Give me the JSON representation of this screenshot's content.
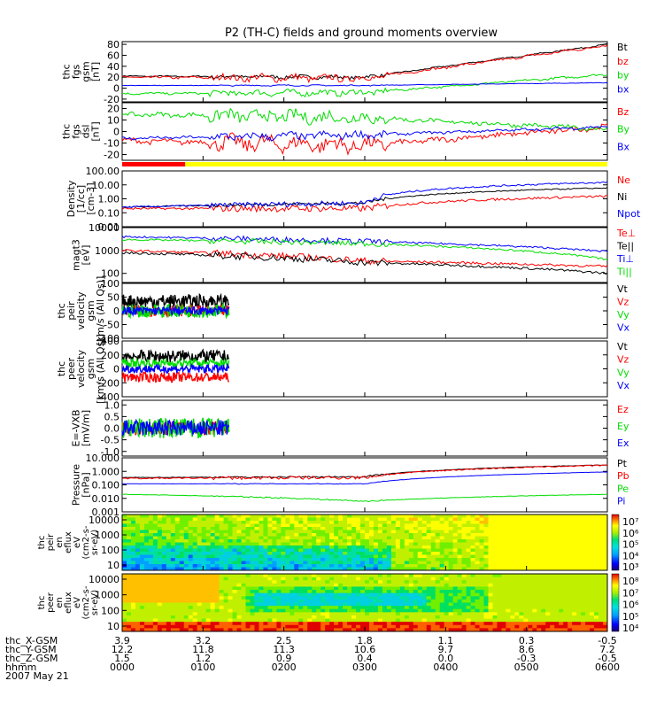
{
  "title": "P2 (TH-C) fields and ground moments overview",
  "chart_data": {
    "type": "line",
    "title": "P2 (TH-C) fields and ground moments overview",
    "time_axis": {
      "label": "hhmm",
      "ticks": [
        "0000",
        "0100",
        "0200",
        "0300",
        "0400",
        "0500",
        "0600"
      ]
    },
    "footer": {
      "rows": [
        {
          "label": "thc_X-GSM",
          "values": [
            "3.9",
            "3.2",
            "2.5",
            "1.8",
            "1.1",
            "0.3",
            "-0.5"
          ]
        },
        {
          "label": "thc_Y-GSM",
          "values": [
            "12.2",
            "11.8",
            "11.3",
            "10.6",
            "9.7",
            "8.6",
            "7.2"
          ]
        },
        {
          "label": "thc_Z-GSM",
          "values": [
            "1.5",
            "1.2",
            "0.9",
            "0.4",
            "0.0",
            "-0.3",
            "-0.5"
          ]
        }
      ],
      "date": "2007 May 21"
    },
    "panels": [
      {
        "id": "fgs_gsm",
        "ylabel": [
          "thc",
          "fgs",
          "gsm",
          "[nT]"
        ],
        "ticks": [
          "80",
          "60",
          "40",
          "20",
          "0",
          "-20"
        ],
        "ylim": [
          -25,
          85
        ],
        "series": [
          {
            "name": "Bt",
            "color": "#000000",
            "start": 22,
            "end": 80,
            "mid": 20,
            "ripple": 3
          },
          {
            "name": "bz",
            "color": "#ff0000",
            "start": 20,
            "end": 78,
            "mid": 18,
            "ripple": 6
          },
          {
            "name": "by",
            "color": "#00dd00",
            "start": -10,
            "end": 25,
            "mid": -8,
            "ripple": 5
          },
          {
            "name": "bx",
            "color": "#0000ff",
            "start": 5,
            "end": 10,
            "mid": 5,
            "ripple": 1
          }
        ]
      },
      {
        "id": "fgs_dsl",
        "ylabel": [
          "thc",
          "fgs",
          "dsl",
          "[nT]"
        ],
        "ticks": [
          "20",
          "10",
          "0",
          "-10",
          "-20"
        ],
        "ylim": [
          -25,
          25
        ],
        "series": [
          {
            "name": "Bz",
            "color": "#ff0000",
            "start": -8,
            "end": 4,
            "mid": -12,
            "ripple": 6
          },
          {
            "name": "By",
            "color": "#00dd00",
            "start": 15,
            "end": 2,
            "mid": 12,
            "ripple": 5
          },
          {
            "name": "Bx",
            "color": "#0000ff",
            "start": -6,
            "end": 4,
            "mid": -3,
            "ripple": 3
          }
        ]
      },
      {
        "id": "density",
        "ylabel": [
          "Density",
          "[1/cc]",
          "[cm-3]"
        ],
        "ticks": [
          "100.00",
          "10.00",
          "1.00",
          "0.10",
          "0.01"
        ],
        "log": true,
        "ylim": [
          0.01,
          100
        ],
        "series": [
          {
            "name": "Ne",
            "color": "#ff0000",
            "start": 0.2,
            "end": 1.5,
            "mid": 0.2,
            "ripple": 0.4
          },
          {
            "name": "Ni",
            "color": "#000000",
            "start": 0.25,
            "end": 6,
            "mid": 0.5,
            "ripple": 0.2
          },
          {
            "name": "Npot",
            "color": "#0000ff",
            "start": 0.25,
            "end": 15,
            "mid": 0.5,
            "ripple": 0.3
          }
        ]
      },
      {
        "id": "temp",
        "ylabel": [
          "magt3",
          "[eV]"
        ],
        "ticks": [
          "10000",
          "1000",
          "100"
        ],
        "log": true,
        "ylim": [
          40,
          10000
        ],
        "series": [
          {
            "name": "Te⊥",
            "color": "#ff0000",
            "start": 1000,
            "end": 200,
            "mid": 350,
            "ripple": 0.25
          },
          {
            "name": "Te||",
            "color": "#000000",
            "start": 800,
            "end": 100,
            "mid": 300,
            "ripple": 0.25
          },
          {
            "name": "Ti⊥",
            "color": "#0000ff",
            "start": 4000,
            "end": 900,
            "mid": 2500,
            "ripple": 0.2
          },
          {
            "name": "Ti||",
            "color": "#00dd00",
            "start": 3000,
            "end": 400,
            "mid": 2000,
            "ripple": 0.2
          }
        ]
      },
      {
        "id": "peir_vel",
        "ylabel": [
          "thc",
          "peir",
          "velocity",
          "gsm",
          "[km/s (All Qs)]"
        ],
        "ticks": [
          "100",
          "50",
          "0",
          "-50",
          "-100"
        ],
        "ylim": [
          -100,
          100
        ],
        "partial": 0.22,
        "series": [
          {
            "name": "Vt",
            "color": "#000000",
            "start": 35,
            "end": 35,
            "mid": 35,
            "ripple": 25
          },
          {
            "name": "Vz",
            "color": "#ff0000",
            "start": 0,
            "end": 0,
            "mid": 0,
            "ripple": 20
          },
          {
            "name": "Vy",
            "color": "#00dd00",
            "start": 0,
            "end": 0,
            "mid": 0,
            "ripple": 25
          },
          {
            "name": "Vx",
            "color": "#0000ff",
            "start": 0,
            "end": 0,
            "mid": 0,
            "ripple": 15
          }
        ]
      },
      {
        "id": "peer_vel",
        "ylabel": [
          "thc",
          "peer",
          "velocity",
          "gsm",
          "[km/s (All Qs)]"
        ],
        "ticks": [
          "400",
          "200",
          "0",
          "-200",
          "-400"
        ],
        "ylim": [
          -400,
          400
        ],
        "partial": 0.22,
        "series": [
          {
            "name": "Vt",
            "color": "#000000",
            "start": 180,
            "end": 180,
            "mid": 180,
            "ripple": 90
          },
          {
            "name": "Vz",
            "color": "#ff0000",
            "start": -120,
            "end": -120,
            "mid": -120,
            "ripple": 70
          },
          {
            "name": "Vy",
            "color": "#00dd00",
            "start": 80,
            "end": 80,
            "mid": 80,
            "ripple": 60
          },
          {
            "name": "Vx",
            "color": "#0000ff",
            "start": 0,
            "end": 0,
            "mid": 0,
            "ripple": 60
          }
        ]
      },
      {
        "id": "efield",
        "ylabel": [
          "E=-VXB",
          "[mV/m]"
        ],
        "ticks": [
          "1.0",
          "0.5",
          "0.0",
          "-0.5",
          "-1.0"
        ],
        "ylim": [
          -1.2,
          1.2
        ],
        "partial": 0.22,
        "series": [
          {
            "name": "Ez",
            "color": "#ff0000",
            "start": 0,
            "end": 0,
            "mid": 0,
            "ripple": 0.3
          },
          {
            "name": "Ey",
            "color": "#00dd00",
            "start": 0,
            "end": 0,
            "mid": 0,
            "ripple": 0.45
          },
          {
            "name": "Ex",
            "color": "#0000ff",
            "start": 0,
            "end": 0,
            "mid": 0,
            "ripple": 0.35
          }
        ]
      },
      {
        "id": "pressure",
        "ylabel": [
          "Pressure",
          "[nPa]"
        ],
        "ticks": [
          "10.000",
          "1.000",
          "0.100",
          "0.010",
          "0.001"
        ],
        "log": true,
        "ylim": [
          0.001,
          10
        ],
        "series": [
          {
            "name": "Pt",
            "color": "#000000",
            "start": 0.35,
            "end": 3,
            "mid": 0.4,
            "ripple": 0.1
          },
          {
            "name": "Pb",
            "color": "#ff0000",
            "start": 0.3,
            "end": 2.8,
            "mid": 0.35,
            "ripple": 0.25
          },
          {
            "name": "Pe",
            "color": "#00dd00",
            "start": 0.02,
            "end": 0.02,
            "mid": 0.006,
            "ripple": 0.1
          },
          {
            "name": "Pi",
            "color": "#0000ff",
            "start": 0.12,
            "end": 0.9,
            "mid": 0.12,
            "ripple": 0.05
          }
        ]
      }
    ],
    "spectrograms": [
      {
        "id": "peir_spec",
        "ylabel": [
          "thc",
          "peir",
          "en",
          "eflux",
          "eV",
          "(cm2-s-",
          "sr-eV)"
        ],
        "ticks": [
          "10000",
          "1000",
          "100",
          "10"
        ],
        "colorbar": [
          "10⁷",
          "10⁶",
          "10⁵",
          "10⁴",
          "10³"
        ]
      },
      {
        "id": "peer_spec",
        "ylabel": [
          "thc",
          "peer",
          "en",
          "eflux",
          "eV",
          "(cm2-s-",
          "sr-eV)"
        ],
        "ticks": [
          "10000",
          "1000",
          "100",
          "10"
        ],
        "colorbar": [
          "10⁸",
          "10⁷",
          "10⁶",
          "10⁵",
          "10⁴"
        ]
      }
    ],
    "mode_bar": {
      "colors": [
        "#ff0000",
        "#ffff00"
      ],
      "split_fraction": 0.13
    }
  },
  "legend_labels": {
    "fgs_gsm": [
      "Bt",
      "bz",
      "by",
      "bx"
    ],
    "fgs_dsl": [
      "Bz",
      "By",
      "Bx"
    ],
    "density": [
      "Ne",
      "Ni",
      "Npot"
    ],
    "temp": [
      "Te⊥",
      "Te||",
      "Ti⊥",
      "Ti||"
    ],
    "peir_vel": [
      "Vt",
      "Vz",
      "Vy",
      "Vx"
    ],
    "peer_vel": [
      "Vt",
      "Vz",
      "Vy",
      "Vx"
    ],
    "efield": [
      "Ez",
      "Ey",
      "Ex"
    ],
    "pressure": [
      "Pt",
      "Pb",
      "Pe",
      "Pi"
    ]
  }
}
